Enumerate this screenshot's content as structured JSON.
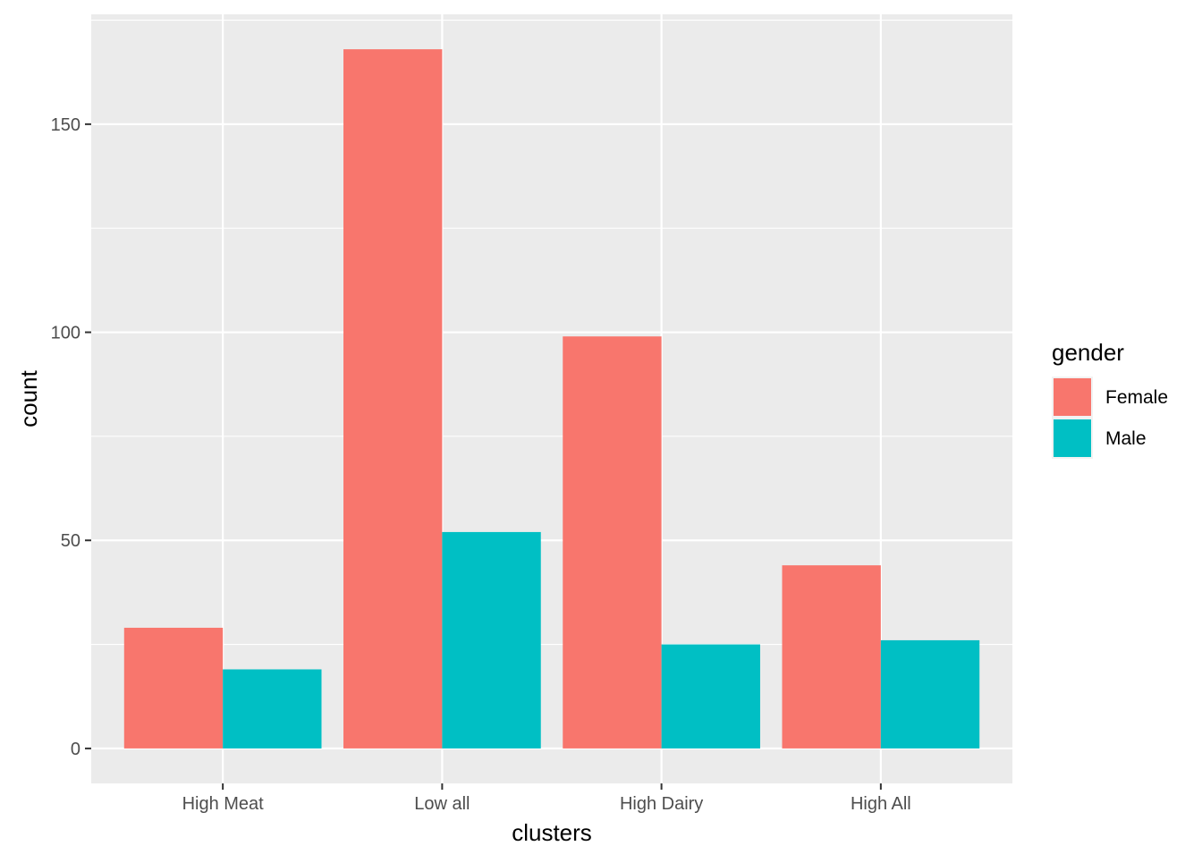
{
  "chart_data": {
    "type": "bar",
    "xlabel": "clusters",
    "ylabel": "count",
    "categories": [
      "High Meat",
      "Low all",
      "High Dairy",
      "High All"
    ],
    "series": [
      {
        "name": "Female",
        "color": "#F8766D",
        "values": [
          29,
          168,
          99,
          44
        ]
      },
      {
        "name": "Male",
        "color": "#00BFC4",
        "values": [
          19,
          52,
          25,
          26
        ]
      }
    ],
    "ylim": [
      -8.4,
      176.4
    ],
    "y_ticks": [
      0,
      50,
      100,
      150
    ],
    "legend": {
      "title": "gender",
      "position": "right"
    },
    "grid": true,
    "panel_color": "#EBEBEB",
    "grid_color": "#FFFFFF"
  }
}
